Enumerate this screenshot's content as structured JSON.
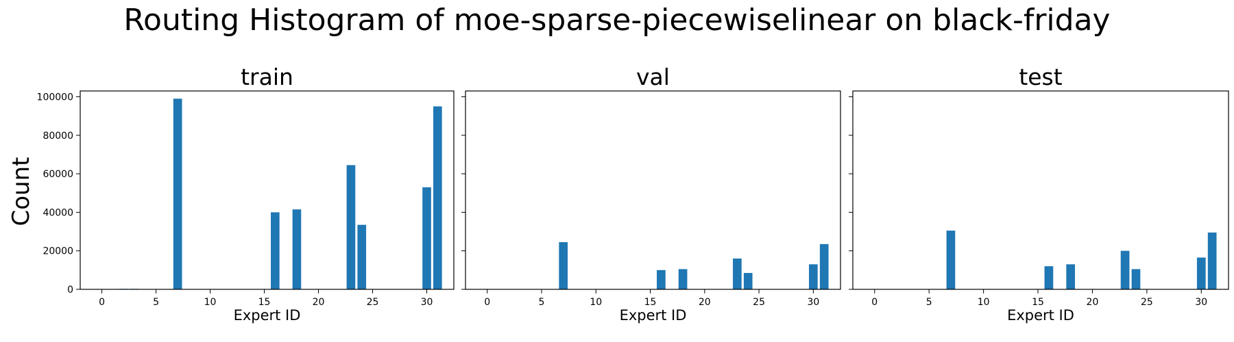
{
  "figure": {
    "title": "Routing Histogram of moe-sparse-piecewiselinear on black-friday",
    "ylabel": "Count"
  },
  "style": {
    "bar_color": "#1f77b4",
    "axis_color": "#000000"
  },
  "chart_data": [
    {
      "type": "bar",
      "title": "train",
      "xlabel": "Expert ID",
      "ylabel": "Count",
      "xlim": [
        -2,
        32.5
      ],
      "ylim": [
        0,
        103000
      ],
      "xticks": [
        0,
        5,
        10,
        15,
        20,
        25,
        30
      ],
      "yticks": [
        0,
        20000,
        40000,
        60000,
        80000,
        100000
      ],
      "x": [
        2,
        3,
        7,
        16,
        18,
        23,
        24,
        30,
        31
      ],
      "values": [
        250,
        250,
        99000,
        40000,
        41500,
        64500,
        33500,
        53000,
        95000
      ]
    },
    {
      "type": "bar",
      "title": "val",
      "xlabel": "Expert ID",
      "xlim": [
        -2,
        32.5
      ],
      "ylim": [
        0,
        103000
      ],
      "xticks": [
        0,
        5,
        10,
        15,
        20,
        25,
        30
      ],
      "yticks": [
        0,
        20000,
        40000,
        60000,
        80000,
        100000
      ],
      "x": [
        7,
        16,
        18,
        23,
        24,
        30,
        31
      ],
      "values": [
        24500,
        10000,
        10500,
        16000,
        8500,
        13000,
        23500
      ]
    },
    {
      "type": "bar",
      "title": "test",
      "xlabel": "Expert ID",
      "xlim": [
        -2,
        32.5
      ],
      "ylim": [
        0,
        103000
      ],
      "xticks": [
        0,
        5,
        10,
        15,
        20,
        25,
        30
      ],
      "yticks": [
        0,
        20000,
        40000,
        60000,
        80000,
        100000
      ],
      "x": [
        7,
        16,
        18,
        23,
        24,
        30,
        31
      ],
      "values": [
        30500,
        12000,
        13000,
        20000,
        10500,
        16500,
        29500
      ]
    }
  ]
}
